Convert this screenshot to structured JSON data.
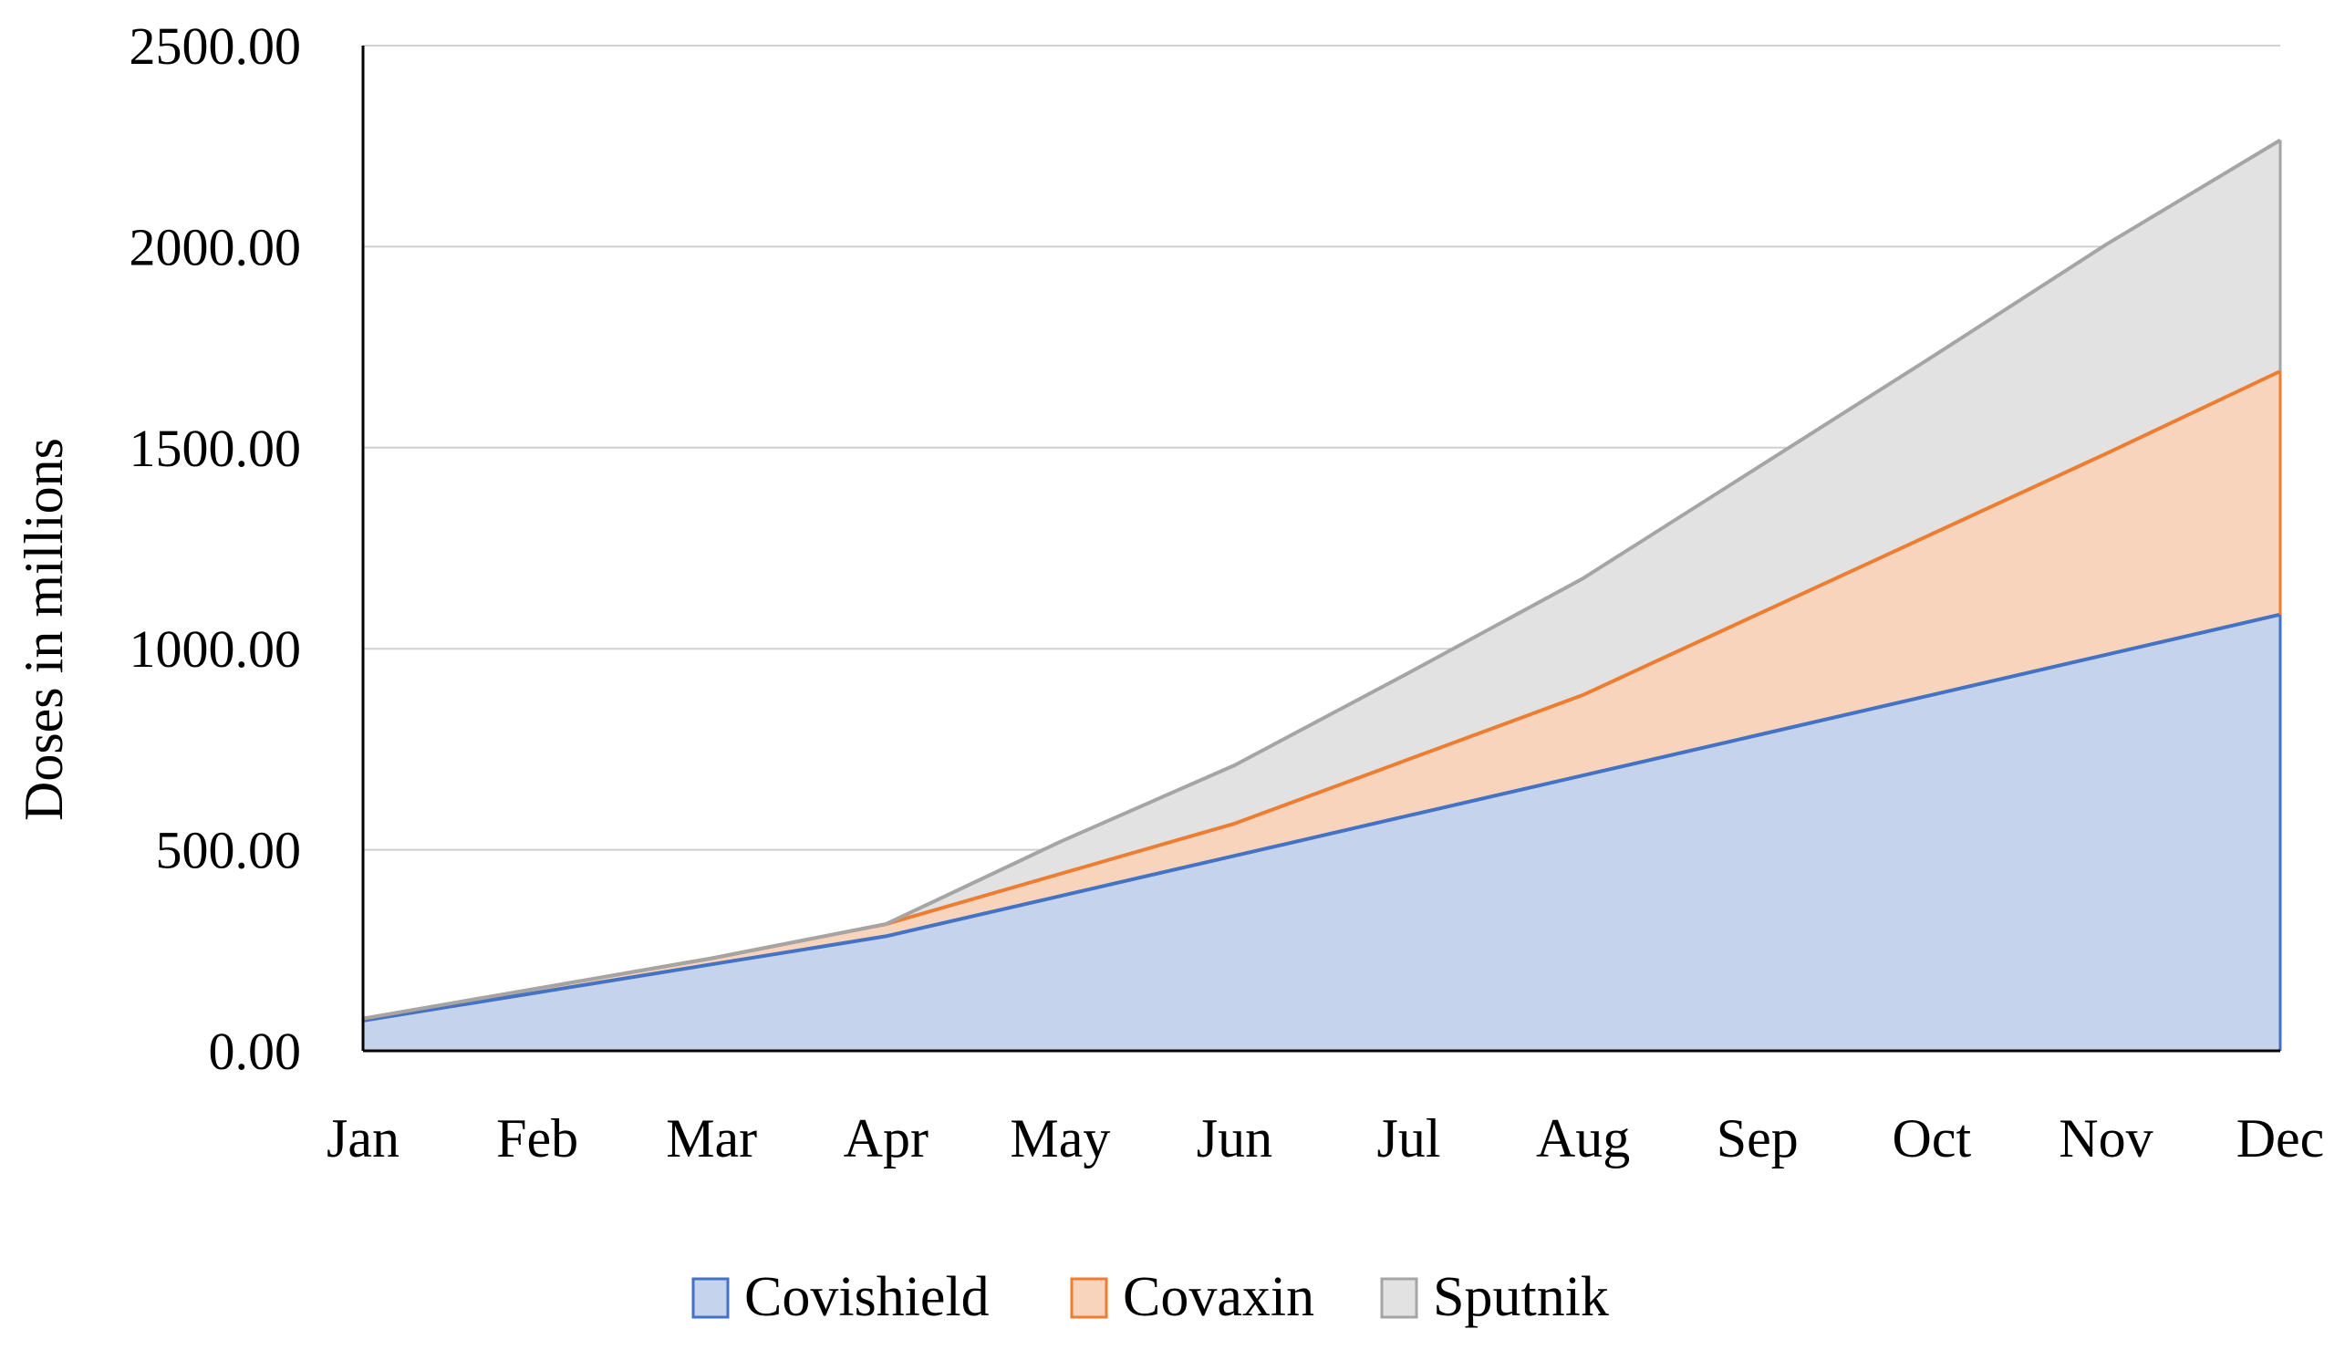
{
  "chart_data": {
    "type": "area",
    "stacked": true,
    "title": "",
    "xlabel": "",
    "ylabel": "Doses in millions",
    "ylim": [
      0,
      2500
    ],
    "yticks": [
      "0.00",
      "500.00",
      "1000.00",
      "1500.00",
      "2000.00",
      "2500.00"
    ],
    "categories": [
      "Jan",
      "Feb",
      "Mar",
      "Apr",
      "May",
      "Jun",
      "Jul",
      "Aug",
      "Sep",
      "Oct",
      "Nov",
      "Dec"
    ],
    "grid": true,
    "legend_position": "bottom",
    "series": [
      {
        "name": "Covishield",
        "values": [
          75,
          145,
          215,
          285,
          385,
          485,
          585,
          685,
          785,
          885,
          985,
          1085
        ],
        "fill": "#c5d3ec",
        "stroke": "#4472c4"
      },
      {
        "name": "Covaxin",
        "values": [
          5,
          10,
          15,
          30,
          55,
          80,
          140,
          200,
          300,
          400,
          500,
          605
        ],
        "fill": "#f8d4bd",
        "stroke": "#ed7d31"
      },
      {
        "name": "Sputnik",
        "values": [
          0,
          0,
          0,
          0,
          80,
          145,
          215,
          290,
          365,
          440,
          520,
          575
        ],
        "fill": "#e2e2e2",
        "stroke": "#a5a5a5"
      }
    ]
  }
}
